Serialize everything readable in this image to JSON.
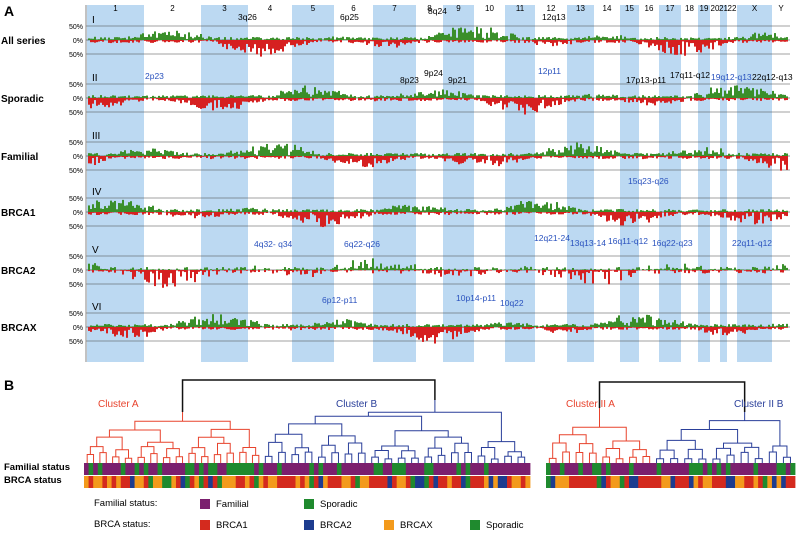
{
  "panel_a": {
    "label": "A",
    "chromosomes": [
      "1",
      "2",
      "3",
      "4",
      "5",
      "6",
      "7",
      "8",
      "9",
      "10",
      "11",
      "12",
      "13",
      "14",
      "15",
      "16",
      "17",
      "18",
      "19",
      "20",
      "21",
      "22",
      "X",
      "Y"
    ],
    "tick_labels": [
      "50%",
      "0%",
      "50%"
    ],
    "rows": [
      {
        "roman": "I",
        "name": "All series",
        "annotations": [
          "3q26",
          "6p25",
          "8q24",
          "12q13",
          "8p23",
          "9p24",
          "9p21",
          "17p13-p11",
          "17q11-q12",
          "19q12-q13",
          "22q12-q13"
        ]
      },
      {
        "roman": "II",
        "name": "Sporadic",
        "annotations": [
          "2p23",
          "12p11"
        ]
      },
      {
        "roman": "III",
        "name": "Familial",
        "annotations": []
      },
      {
        "roman": "IV",
        "name": "BRCA1",
        "annotations": [
          "15q23-q26",
          "4q32- q34",
          "6q22-q26",
          "12q21-24",
          "13q13-14",
          "16q11-q12",
          "16q22-q23",
          "22q11-q12"
        ]
      },
      {
        "roman": "V",
        "name": "BRCA2",
        "annotations": []
      },
      {
        "roman": "VI",
        "name": "BRCAX",
        "annotations": [
          "6p12-p11",
          "10p14-p11",
          "10q22"
        ]
      }
    ],
    "colors": {
      "gain": "#3a8f2a",
      "loss": "#d62020",
      "band": "#bcd9f2"
    }
  },
  "panel_b": {
    "label": "B",
    "clusters": [
      "Cluster A",
      "Cluster B",
      "Cluster II A",
      "Cluster II B"
    ],
    "track_labels": [
      "Familial status",
      "BRCA status"
    ],
    "legend_familial": {
      "title": "Familial status:",
      "items": [
        {
          "label": "Familial",
          "color": "#7b1f6e"
        },
        {
          "label": "Sporadic",
          "color": "#1f8a2e"
        }
      ]
    },
    "legend_brca": {
      "title": "BRCA status:",
      "items": [
        {
          "label": "BRCA1",
          "color": "#d42a1e"
        },
        {
          "label": "BRCA2",
          "color": "#1d3c8f"
        },
        {
          "label": "BRCAX",
          "color": "#f39a1c"
        },
        {
          "label": "Sporadic",
          "color": "#1f8a2e"
        }
      ]
    },
    "colors": {
      "cluster_a": "#e8432d",
      "cluster_b": "#2a3f9a",
      "root": "#111111"
    }
  }
}
